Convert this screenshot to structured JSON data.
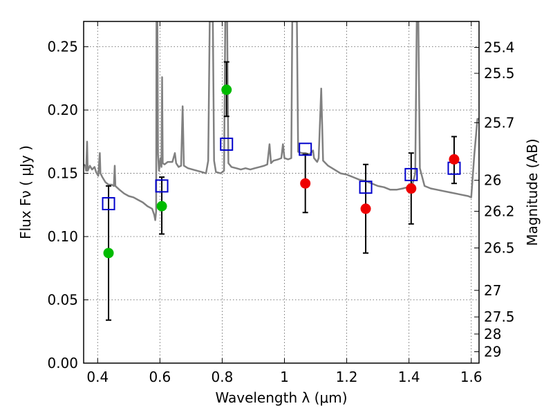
{
  "chart_data": {
    "type": "scatter",
    "title": "",
    "xlabel": "Wavelength  λ (μm)",
    "ylabel": "Flux  Fν  ( μJy )",
    "ylabel_right": "Magnitude (AB)",
    "xlim": [
      0.355,
      1.625
    ],
    "ylim": [
      0.0,
      0.27
    ],
    "x_ticks": [
      0.4,
      0.6,
      0.8,
      1.0,
      1.2,
      1.4,
      1.6
    ],
    "x_tick_labels": [
      "0.4",
      "0.6",
      "0.8",
      "1",
      "1.2",
      "1.4",
      "1.6"
    ],
    "y_ticks": [
      0.0,
      0.05,
      0.1,
      0.15,
      0.2,
      0.25
    ],
    "y_tick_labels": [
      "0.00",
      "0.05",
      "0.10",
      "0.15",
      "0.20",
      "0.25"
    ],
    "right_ticks": [
      {
        "label": "25.4",
        "flux": 0.2495
      },
      {
        "label": "25.5",
        "flux": 0.229
      },
      {
        "label": "25.7",
        "flux": 0.19
      },
      {
        "label": "26",
        "flux": 0.1445
      },
      {
        "label": "26.2",
        "flux": 0.12
      },
      {
        "label": "26.5",
        "flux": 0.091
      },
      {
        "label": "27",
        "flux": 0.0575
      },
      {
        "label": "27.5",
        "flux": 0.0365
      },
      {
        "label": "28",
        "flux": 0.023
      },
      {
        "label": "29",
        "flux": 0.009
      }
    ],
    "grid": true,
    "colors": {
      "spectrum": "#808080",
      "observed_green": "#00bb00",
      "observed_red": "#ee0000",
      "model_squares": "#0000cc",
      "errorbars": "#000000"
    },
    "series": [
      {
        "marker": "circle",
        "color": "#00bb00",
        "points": [
          {
            "x": 0.435,
            "y": 0.087,
            "err": [
              0.034,
              0.14
            ]
          },
          {
            "x": 0.606,
            "y": 0.124,
            "err": [
              0.102,
              0.147
            ]
          },
          {
            "x": 0.814,
            "y": 0.216,
            "err": [
              0.195,
              0.238
            ]
          }
        ]
      },
      {
        "marker": "circle",
        "color": "#ee0000",
        "points": [
          {
            "x": 1.067,
            "y": 0.142,
            "err": [
              0.119,
              0.165
            ]
          },
          {
            "x": 1.261,
            "y": 0.122,
            "err": [
              0.087,
              0.157
            ]
          },
          {
            "x": 1.407,
            "y": 0.138,
            "err": [
              0.11,
              0.166
            ]
          },
          {
            "x": 1.545,
            "y": 0.161,
            "err": [
              0.142,
              0.179
            ]
          }
        ]
      },
      {
        "marker": "open-square",
        "color": "#0000cc",
        "points": [
          {
            "x": 0.435,
            "y": 0.126
          },
          {
            "x": 0.606,
            "y": 0.14
          },
          {
            "x": 0.814,
            "y": 0.173
          },
          {
            "x": 1.067,
            "y": 0.169
          },
          {
            "x": 1.261,
            "y": 0.139
          },
          {
            "x": 1.407,
            "y": 0.149
          },
          {
            "x": 1.545,
            "y": 0.154
          }
        ]
      },
      {
        "marker": "line",
        "color": "#808080",
        "points": [
          [
            0.355,
            0.157
          ],
          [
            0.36,
            0.156
          ],
          [
            0.363,
            0.152
          ],
          [
            0.366,
            0.175
          ],
          [
            0.368,
            0.152
          ],
          [
            0.375,
            0.156
          ],
          [
            0.382,
            0.153
          ],
          [
            0.39,
            0.155
          ],
          [
            0.395,
            0.151
          ],
          [
            0.402,
            0.148
          ],
          [
            0.407,
            0.166
          ],
          [
            0.409,
            0.15
          ],
          [
            0.415,
            0.147
          ],
          [
            0.425,
            0.143
          ],
          [
            0.435,
            0.141
          ],
          [
            0.445,
            0.141
          ],
          [
            0.452,
            0.14
          ],
          [
            0.455,
            0.156
          ],
          [
            0.457,
            0.14
          ],
          [
            0.47,
            0.137
          ],
          [
            0.485,
            0.134
          ],
          [
            0.5,
            0.132
          ],
          [
            0.515,
            0.131
          ],
          [
            0.53,
            0.129
          ],
          [
            0.545,
            0.127
          ],
          [
            0.56,
            0.124
          ],
          [
            0.575,
            0.122
          ],
          [
            0.582,
            0.117
          ],
          [
            0.585,
            0.113
          ],
          [
            0.588,
            0.12
          ],
          [
            0.589,
            0.27
          ],
          [
            0.592,
            0.27
          ],
          [
            0.594,
            0.165
          ],
          [
            0.597,
            0.152
          ],
          [
            0.602,
            0.162
          ],
          [
            0.605,
            0.155
          ],
          [
            0.607,
            0.226
          ],
          [
            0.609,
            0.158
          ],
          [
            0.615,
            0.157
          ],
          [
            0.625,
            0.159
          ],
          [
            0.64,
            0.159
          ],
          [
            0.648,
            0.166
          ],
          [
            0.652,
            0.158
          ],
          [
            0.66,
            0.155
          ],
          [
            0.668,
            0.156
          ],
          [
            0.673,
            0.203
          ],
          [
            0.677,
            0.156
          ],
          [
            0.69,
            0.154
          ],
          [
            0.705,
            0.153
          ],
          [
            0.72,
            0.152
          ],
          [
            0.735,
            0.151
          ],
          [
            0.748,
            0.15
          ],
          [
            0.755,
            0.16
          ],
          [
            0.76,
            0.27
          ],
          [
            0.77,
            0.27
          ],
          [
            0.774,
            0.16
          ],
          [
            0.78,
            0.151
          ],
          [
            0.795,
            0.15
          ],
          [
            0.806,
            0.152
          ],
          [
            0.81,
            0.27
          ],
          [
            0.816,
            0.27
          ],
          [
            0.82,
            0.158
          ],
          [
            0.83,
            0.155
          ],
          [
            0.845,
            0.154
          ],
          [
            0.86,
            0.153
          ],
          [
            0.875,
            0.154
          ],
          [
            0.89,
            0.153
          ],
          [
            0.905,
            0.154
          ],
          [
            0.92,
            0.155
          ],
          [
            0.935,
            0.156
          ],
          [
            0.945,
            0.157
          ],
          [
            0.952,
            0.173
          ],
          [
            0.957,
            0.158
          ],
          [
            0.965,
            0.16
          ],
          [
            0.98,
            0.161
          ],
          [
            0.99,
            0.162
          ],
          [
            0.995,
            0.173
          ],
          [
            1.0,
            0.162
          ],
          [
            1.012,
            0.161
          ],
          [
            1.022,
            0.162
          ],
          [
            1.025,
            0.27
          ],
          [
            1.04,
            0.27
          ],
          [
            1.044,
            0.167
          ],
          [
            1.055,
            0.166
          ],
          [
            1.068,
            0.166
          ],
          [
            1.08,
            0.165
          ],
          [
            1.092,
            0.168
          ],
          [
            1.095,
            0.162
          ],
          [
            1.105,
            0.159
          ],
          [
            1.11,
            0.162
          ],
          [
            1.118,
            0.217
          ],
          [
            1.124,
            0.16
          ],
          [
            1.14,
            0.156
          ],
          [
            1.16,
            0.153
          ],
          [
            1.18,
            0.15
          ],
          [
            1.2,
            0.149
          ],
          [
            1.22,
            0.147
          ],
          [
            1.24,
            0.145
          ],
          [
            1.26,
            0.144
          ],
          [
            1.28,
            0.142
          ],
          [
            1.3,
            0.14
          ],
          [
            1.32,
            0.139
          ],
          [
            1.34,
            0.137
          ],
          [
            1.36,
            0.137
          ],
          [
            1.38,
            0.138
          ],
          [
            1.395,
            0.139
          ],
          [
            1.41,
            0.14
          ],
          [
            1.42,
            0.15
          ],
          [
            1.425,
            0.27
          ],
          [
            1.43,
            0.27
          ],
          [
            1.435,
            0.154
          ],
          [
            1.45,
            0.14
          ],
          [
            1.47,
            0.138
          ],
          [
            1.49,
            0.137
          ],
          [
            1.51,
            0.136
          ],
          [
            1.53,
            0.135
          ],
          [
            1.55,
            0.134
          ],
          [
            1.57,
            0.133
          ],
          [
            1.59,
            0.132
          ],
          [
            1.6,
            0.131
          ],
          [
            1.61,
            0.165
          ],
          [
            1.62,
            0.193
          ],
          [
            1.625,
            0.193
          ]
        ]
      }
    ]
  }
}
